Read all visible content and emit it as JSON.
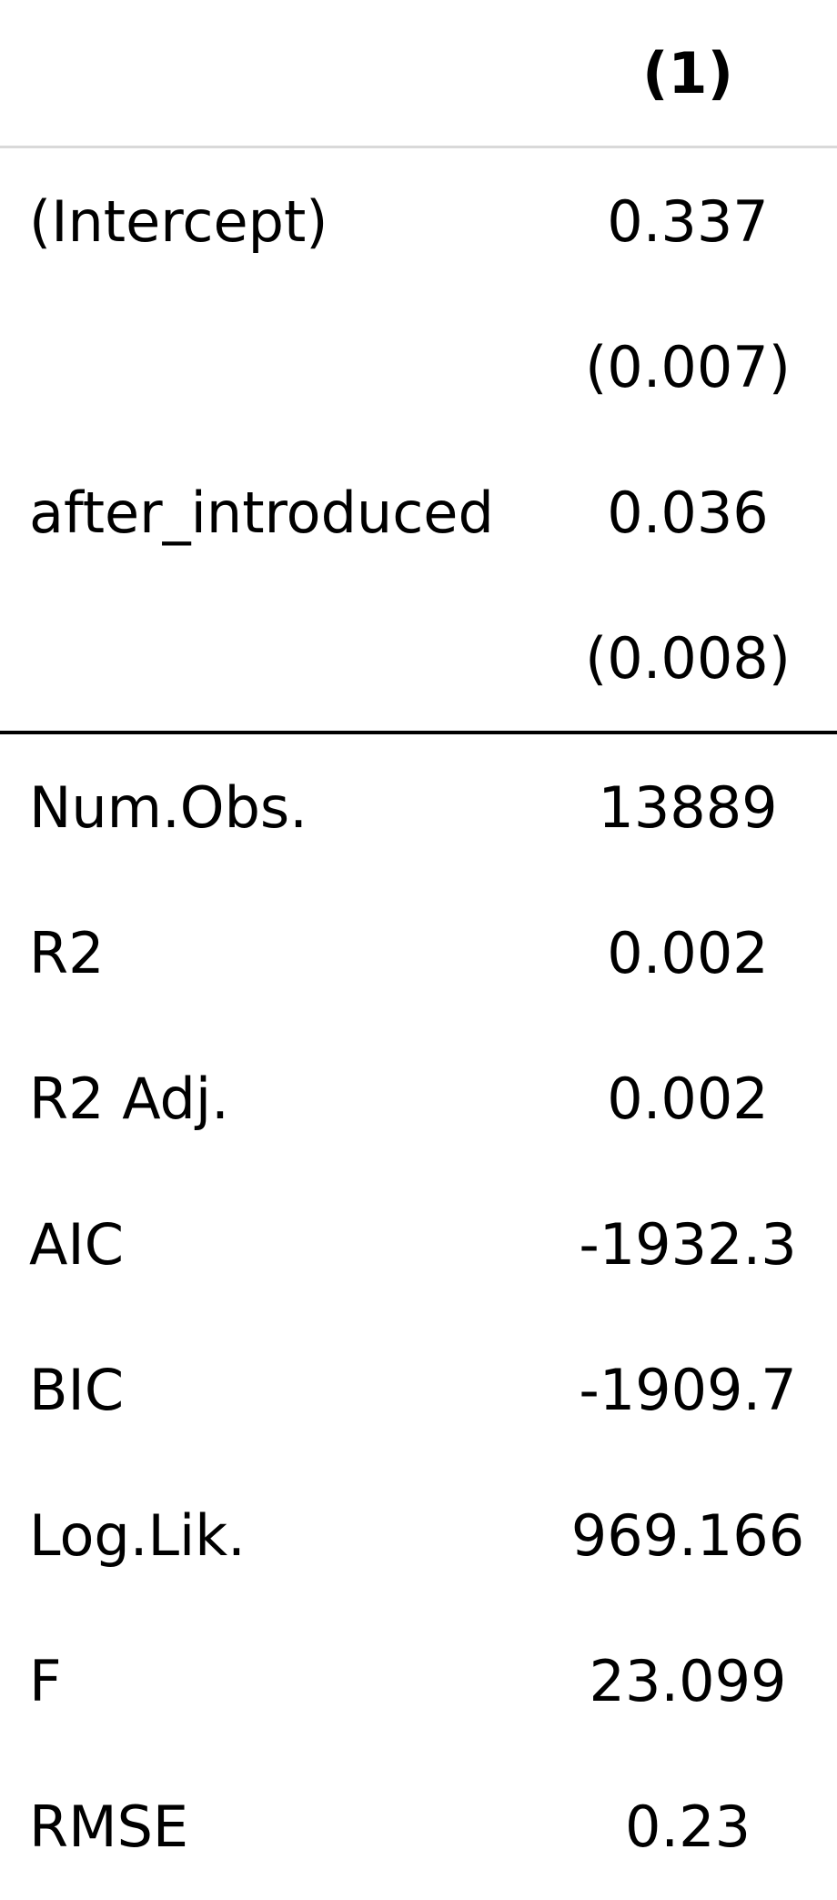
{
  "table": {
    "header": {
      "label": "",
      "column": "(1)"
    },
    "coefficients": [
      {
        "label": "(Intercept)",
        "value": "0.337"
      },
      {
        "label": "",
        "value": "(0.007)"
      },
      {
        "label": "after_introduced",
        "value": "0.036"
      },
      {
        "label": "",
        "value": "(0.008)"
      }
    ],
    "stats": [
      {
        "label": "Num.Obs.",
        "value": "13889"
      },
      {
        "label": "R2",
        "value": "0.002"
      },
      {
        "label": "R2 Adj.",
        "value": "0.002"
      },
      {
        "label": "AIC",
        "value": "-1932.3"
      },
      {
        "label": "BIC",
        "value": "-1909.7"
      },
      {
        "label": "Log.Lik.",
        "value": "969.166"
      },
      {
        "label": "F",
        "value": "23.099"
      },
      {
        "label": "RMSE",
        "value": "0.23"
      }
    ]
  }
}
